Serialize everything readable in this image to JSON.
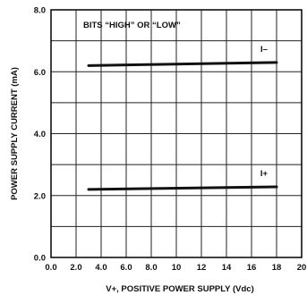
{
  "chart_data": {
    "type": "line",
    "title": "",
    "xlabel": "V+, POSITIVE POWER SUPPLY (Vdc)",
    "ylabel": "POWER SUPPLY CURRENT (mA)",
    "xlim": [
      0,
      20
    ],
    "ylim": [
      0,
      8
    ],
    "xticks": [
      0,
      2,
      4,
      6,
      8,
      10,
      12,
      14,
      16,
      18,
      20
    ],
    "xtick_labels": [
      "0.0",
      "2.0",
      "4.0",
      "6.0",
      "8.0",
      "10",
      "12",
      "14",
      "16",
      "18",
      "20"
    ],
    "yticks": [
      0,
      2,
      4,
      6,
      8
    ],
    "ytick_labels": [
      "0.0",
      "2.0",
      "4.0",
      "6.0",
      "8.0"
    ],
    "grid": true,
    "annotations": [
      "BITS “HIGH” OR “LOW”"
    ],
    "series": [
      {
        "name": "I–",
        "x": [
          3,
          18
        ],
        "y": [
          6.2,
          6.3
        ]
      },
      {
        "name": "I+",
        "x": [
          3,
          18
        ],
        "y": [
          2.2,
          2.28
        ]
      }
    ]
  }
}
